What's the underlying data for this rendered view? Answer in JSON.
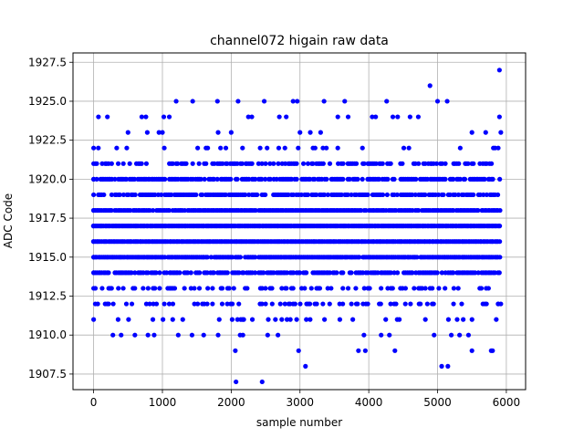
{
  "chart_data": {
    "type": "scatter",
    "title": "channel072 higain raw data",
    "xlabel": "sample number",
    "ylabel": "ADC Code",
    "xlim": [
      -300,
      6280
    ],
    "ylim": [
      1906.5,
      1928.1
    ],
    "xticks": [
      0,
      1000,
      2000,
      3000,
      4000,
      5000,
      6000
    ],
    "xtick_labels": [
      "0",
      "1000",
      "2000",
      "3000",
      "4000",
      "5000",
      "6000"
    ],
    "yticks": [
      1907.5,
      1910.0,
      1912.5,
      1915.0,
      1917.5,
      1920.0,
      1922.5,
      1925.0,
      1927.5
    ],
    "ytick_labels": [
      "1907.5",
      "1910.0",
      "1912.5",
      "1915.0",
      "1917.5",
      "1920.0",
      "1922.5",
      "1925.0",
      "1927.5"
    ],
    "grid": true,
    "marker_color": "#0000ff",
    "x_range": [
      0,
      5920
    ],
    "dense_levels": [
      {
        "y": 1913,
        "density": 0.35
      },
      {
        "y": 1914,
        "density": 0.75
      },
      {
        "y": 1915,
        "density": 0.95
      },
      {
        "y": 1916,
        "density": 1.0
      },
      {
        "y": 1917,
        "density": 1.0
      },
      {
        "y": 1918,
        "density": 0.95
      },
      {
        "y": 1919,
        "density": 0.7
      },
      {
        "y": 1920,
        "density": 0.75
      },
      {
        "y": 1921,
        "density": 0.45
      },
      {
        "y": 1922,
        "density": 0.1
      },
      {
        "y": 1912,
        "density": 0.25
      },
      {
        "y": 1911,
        "density": 0.1
      }
    ],
    "sparse_points": [
      [
        0,
        1911
      ],
      [
        0,
        1922
      ],
      [
        0,
        1921
      ],
      [
        0,
        1920
      ],
      [
        0,
        1919
      ],
      [
        0,
        1918
      ],
      [
        0,
        1917
      ],
      [
        0,
        1916
      ],
      [
        0,
        1915
      ],
      [
        0,
        1914
      ],
      [
        0,
        1913
      ],
      [
        60,
        1912
      ],
      [
        70,
        1924
      ],
      [
        200,
        1924
      ],
      [
        280,
        1910
      ],
      [
        400,
        1910
      ],
      [
        500,
        1923
      ],
      [
        600,
        1910
      ],
      [
        700,
        1924
      ],
      [
        760,
        1924
      ],
      [
        780,
        1923
      ],
      [
        790,
        1910
      ],
      [
        880,
        1910
      ],
      [
        950,
        1923
      ],
      [
        1020,
        1924
      ],
      [
        1100,
        1924
      ],
      [
        1200,
        1925
      ],
      [
        1230,
        1910
      ],
      [
        1430,
        1910
      ],
      [
        1440,
        1925
      ],
      [
        1600,
        1910
      ],
      [
        1800,
        1925
      ],
      [
        1810,
        1923
      ],
      [
        1810,
        1910
      ],
      [
        2060,
        1909
      ],
      [
        2070,
        1907
      ],
      [
        2100,
        1925
      ],
      [
        2130,
        1910
      ],
      [
        2170,
        1910
      ],
      [
        2250,
        1924
      ],
      [
        2300,
        1924
      ],
      [
        2450,
        1907
      ],
      [
        2480,
        1925
      ],
      [
        2530,
        1910
      ],
      [
        2680,
        1910
      ],
      [
        2700,
        1924
      ],
      [
        2800,
        1924
      ],
      [
        2900,
        1925
      ],
      [
        2960,
        1925
      ],
      [
        2980,
        1909
      ],
      [
        3080,
        1908
      ],
      [
        3150,
        1923
      ],
      [
        3350,
        1925
      ],
      [
        3550,
        1924
      ],
      [
        3650,
        1925
      ],
      [
        3700,
        1924
      ],
      [
        3850,
        1909
      ],
      [
        3950,
        1909
      ],
      [
        3930,
        1910
      ],
      [
        4050,
        1924
      ],
      [
        4100,
        1924
      ],
      [
        4180,
        1910
      ],
      [
        4260,
        1925
      ],
      [
        4300,
        1910
      ],
      [
        4350,
        1924
      ],
      [
        4380,
        1909
      ],
      [
        4420,
        1924
      ],
      [
        4600,
        1924
      ],
      [
        4720,
        1924
      ],
      [
        4890,
        1926
      ],
      [
        4950,
        1910
      ],
      [
        5000,
        1925
      ],
      [
        5060,
        1908
      ],
      [
        5140,
        1925
      ],
      [
        5150,
        1908
      ],
      [
        5200,
        1910
      ],
      [
        5320,
        1910
      ],
      [
        5450,
        1910
      ],
      [
        5500,
        1909
      ],
      [
        5780,
        1909
      ],
      [
        5800,
        1909
      ],
      [
        5900,
        1927
      ],
      [
        5900,
        1924
      ],
      [
        5920,
        1923
      ],
      [
        5920,
        1912
      ],
      [
        5880,
        1912
      ],
      [
        5700,
        1923
      ],
      [
        5500,
        1923
      ],
      [
        3000,
        1923
      ],
      [
        2000,
        1923
      ],
      [
        1000,
        1923
      ],
      [
        3300,
        1923
      ]
    ]
  }
}
